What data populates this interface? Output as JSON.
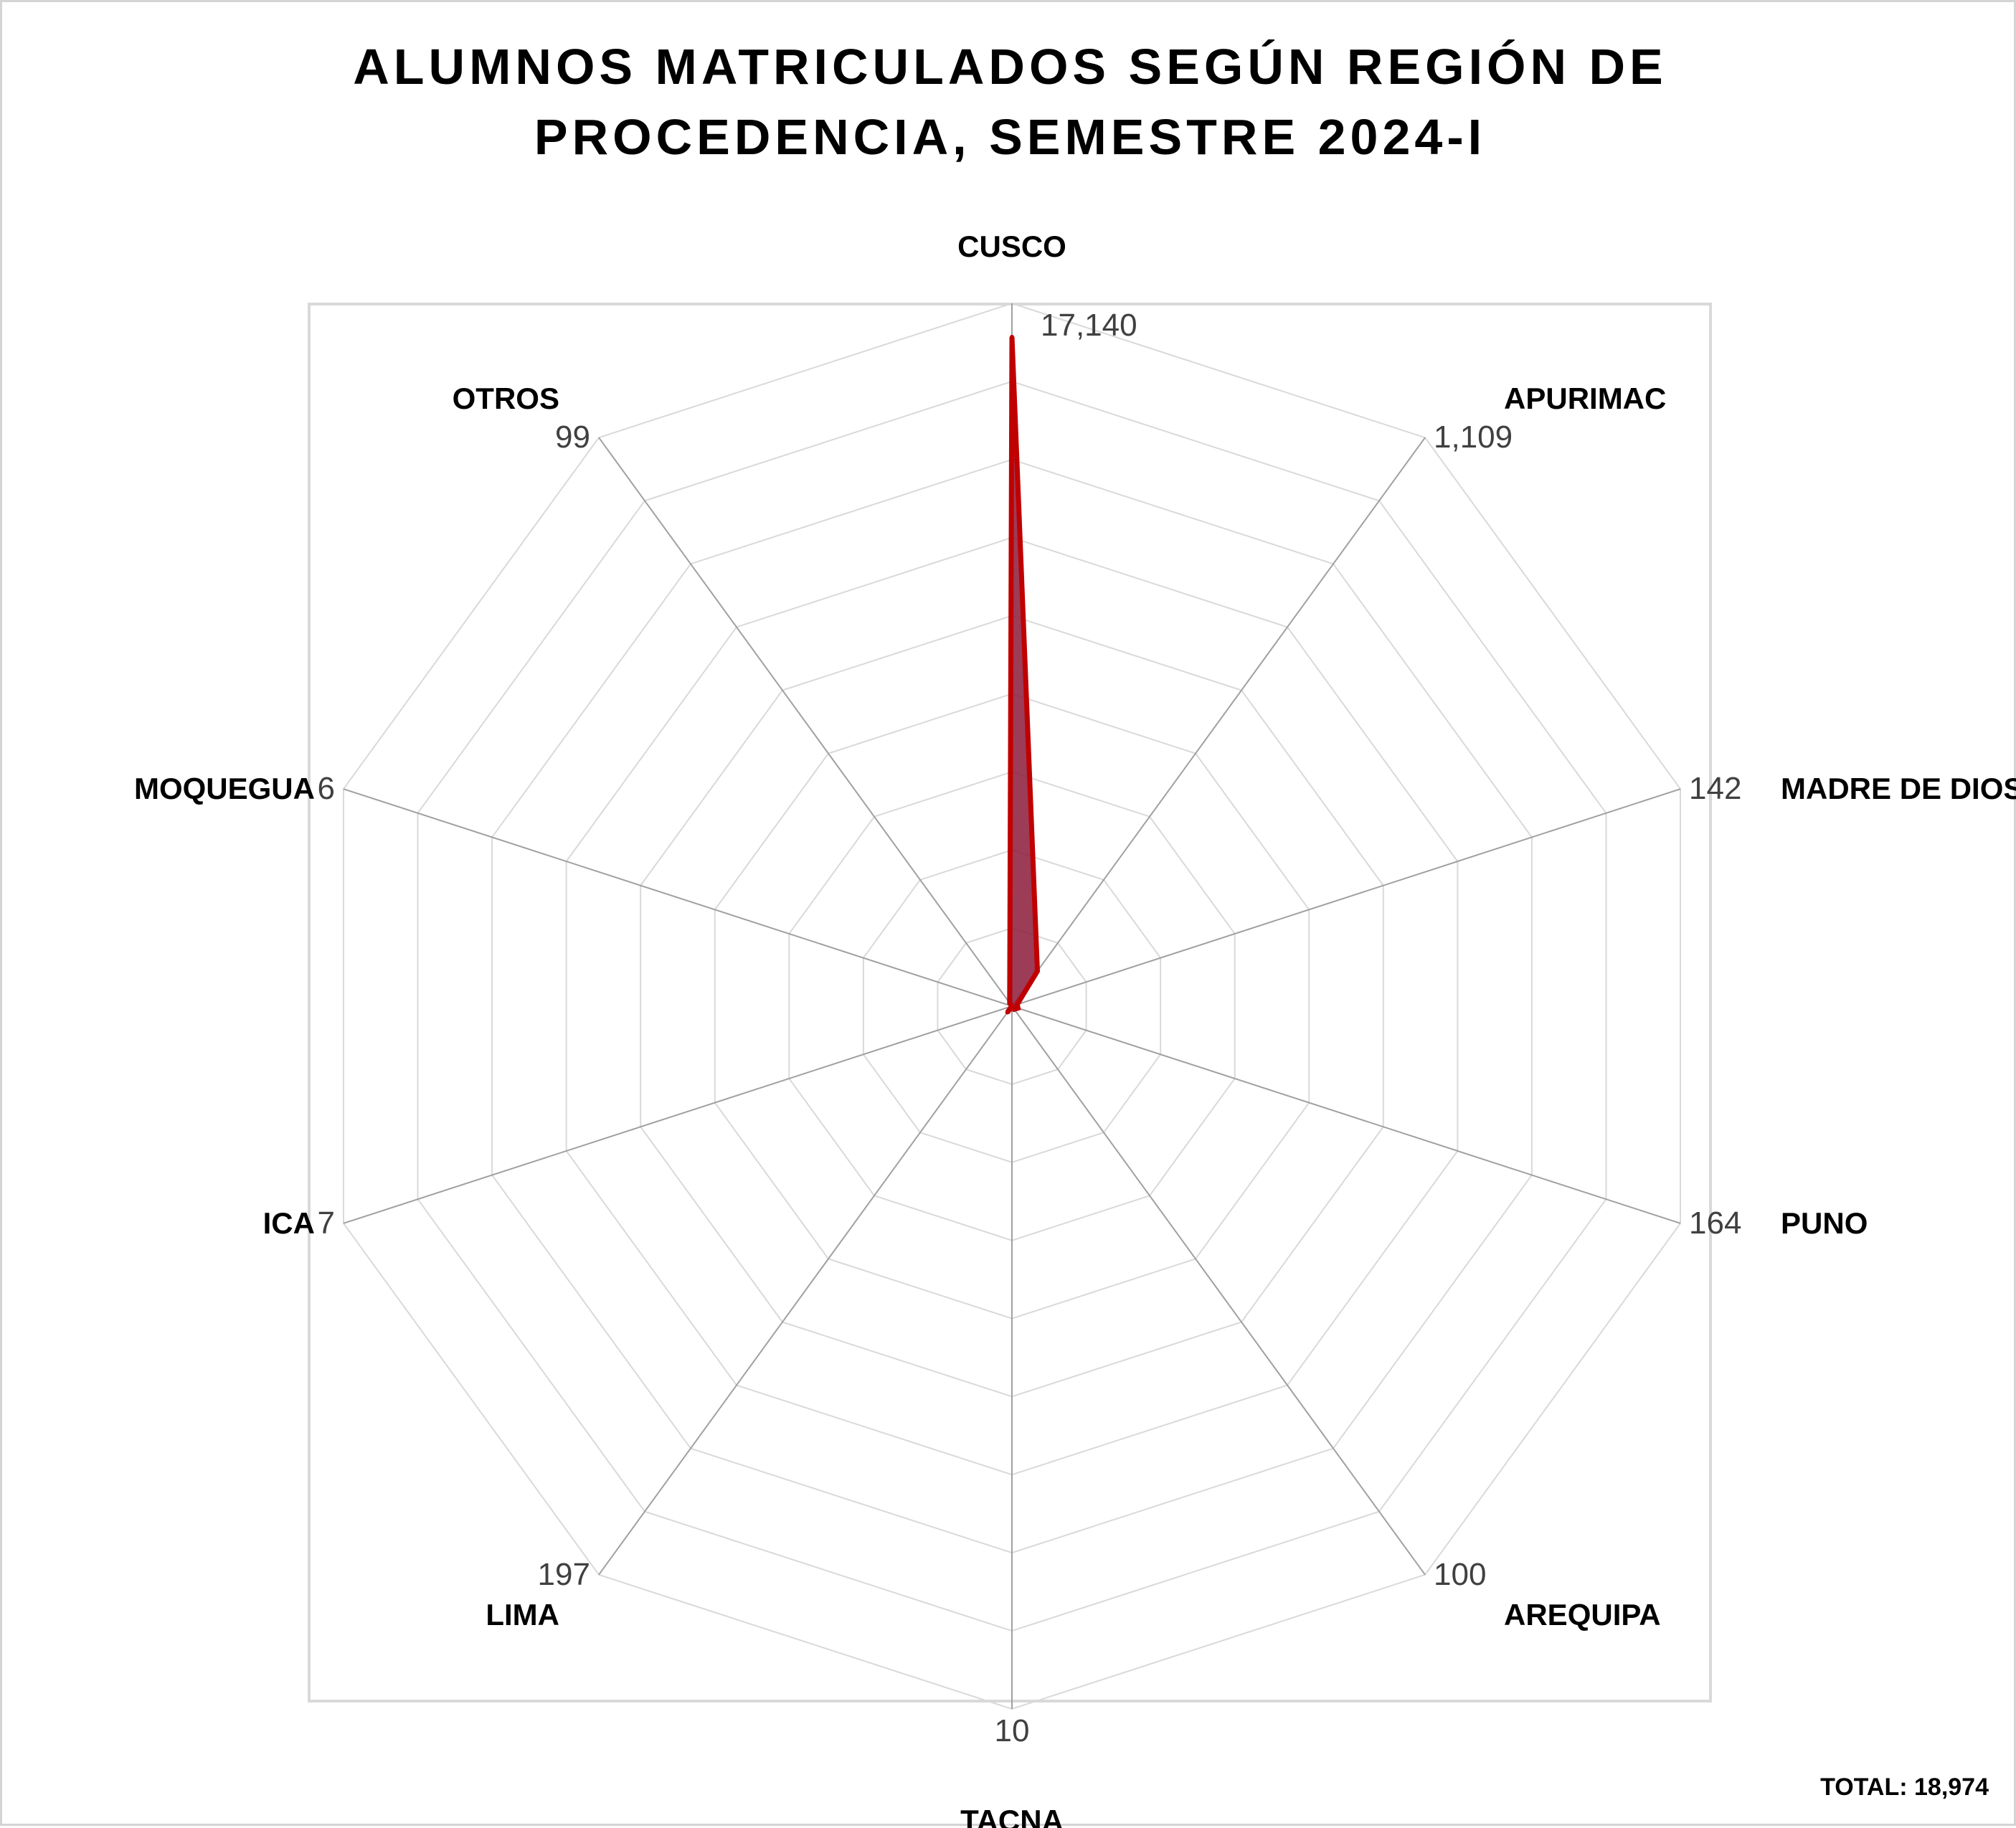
{
  "title_lines": [
    "ALUMNOS MATRICULADOS SEGÚN REGIÓN DE",
    "PROCEDENCIA, SEMESTRE 2024-I"
  ],
  "total_label": "TOTAL: 18,974",
  "colors": {
    "series_line": "#c00000",
    "series_fill": "#8b1a3a",
    "grid": "#d9d9d9",
    "spoke": "#a0a0a0",
    "value_text": "#404040"
  },
  "chart_data": {
    "type": "radar",
    "title": "ALUMNOS MATRICULADOS SEGÚN REGIÓN DE PROCEDENCIA, SEMESTRE 2024-I",
    "categories": [
      "CUSCO",
      "APURIMAC",
      "MADRE DE DIOS",
      "PUNO",
      "AREQUIPA",
      "TACNA",
      "LIMA",
      "ICA",
      "MOQUEGUA",
      "OTROS"
    ],
    "values": [
      17140,
      1109,
      142,
      164,
      100,
      10,
      197,
      7,
      6,
      99
    ],
    "value_labels": [
      "17,140",
      "1,109",
      "142",
      "164",
      "100",
      "10",
      "197",
      "7",
      "6",
      "99"
    ],
    "rlim": [
      0,
      18000
    ],
    "grid_rings": 9,
    "legend": "none",
    "total": 18974
  }
}
